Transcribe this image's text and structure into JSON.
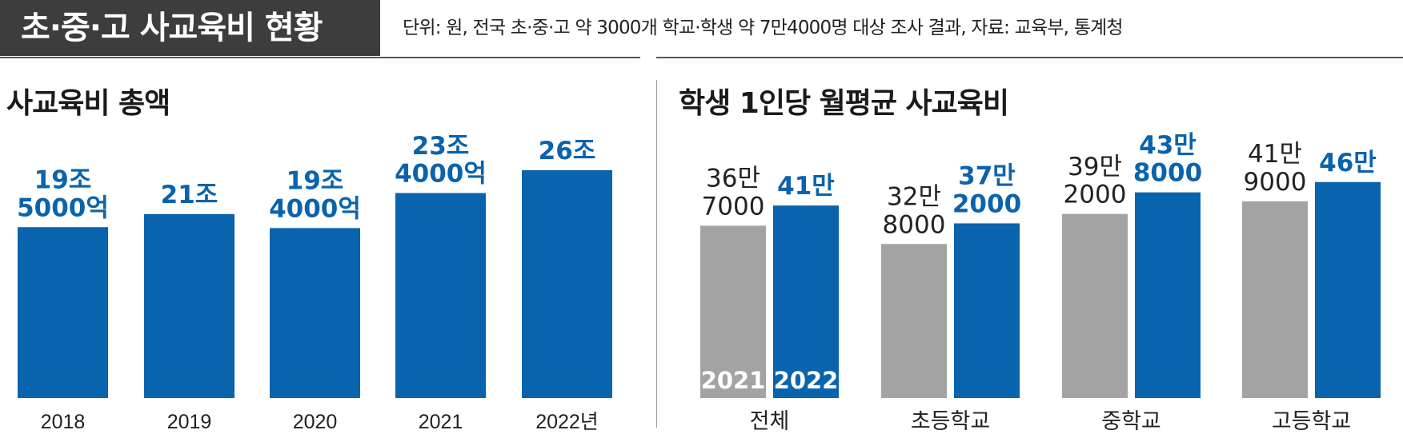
{
  "header": {
    "title": "초·중·고 사교육비 현황",
    "note": "단위: 원, 전국 초·중·고 약 3000개 학교·학생 약 7만4000명 대상 조사 결과, 자료: 교육부, 통계청"
  },
  "colors": {
    "blue": "#0a63ad",
    "gray": "#a3a3a3",
    "title_bg": "#3d3d3d"
  },
  "chart_data": [
    {
      "type": "bar",
      "title": "사교육비 총액",
      "categories": [
        "2018",
        "2019",
        "2020",
        "2021",
        "2022년"
      ],
      "values": [
        195000,
        210000,
        194000,
        234000,
        260000
      ],
      "unit": "억 원",
      "data_labels": [
        [
          "19조",
          "5000억"
        ],
        [
          "21조"
        ],
        [
          "19조",
          "4000억"
        ],
        [
          "23조",
          "4000억"
        ],
        [
          "26조"
        ]
      ],
      "ylim": [
        0,
        300000
      ]
    },
    {
      "type": "bar",
      "title": "학생 1인당 월평균 사교육비",
      "categories": [
        "전체",
        "초등학교",
        "중학교",
        "고등학교"
      ],
      "series": [
        {
          "name": "2021",
          "values": [
            367000,
            328000,
            392000,
            419000
          ],
          "data_labels": [
            [
              "36만",
              "7000"
            ],
            [
              "32만",
              "8000"
            ],
            [
              "39만",
              "2000"
            ],
            [
              "41만",
              "9000"
            ]
          ]
        },
        {
          "name": "2022",
          "values": [
            410000,
            372000,
            438000,
            460000
          ],
          "data_labels": [
            [
              "41만"
            ],
            [
              "37만",
              "2000"
            ],
            [
              "43만",
              "8000"
            ],
            [
              "46만"
            ]
          ]
        }
      ],
      "ylim": [
        0,
        580000
      ]
    }
  ]
}
